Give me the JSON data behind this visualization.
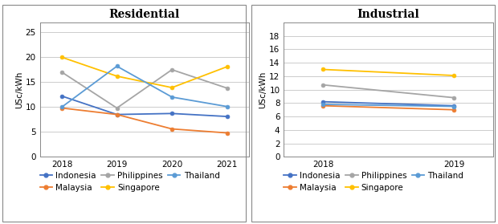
{
  "residential": {
    "title": "Residential",
    "ylabel": "USc/kWh",
    "years": [
      2018,
      2019,
      2020,
      2021
    ],
    "ylim": [
      0,
      27
    ],
    "yticks": [
      0,
      5,
      10,
      15,
      20,
      25
    ],
    "series": {
      "Indonesia": {
        "values": [
          12.2,
          8.5,
          8.7,
          8.1
        ],
        "color": "#4472C4",
        "marker": "o"
      },
      "Malaysia": {
        "values": [
          9.8,
          8.5,
          5.6,
          4.8
        ],
        "color": "#ED7D31",
        "marker": "o"
      },
      "Philippines": {
        "values": [
          17.0,
          9.8,
          17.5,
          13.8
        ],
        "color": "#A5A5A5",
        "marker": "o"
      },
      "Singapore": {
        "values": [
          20.0,
          16.2,
          13.9,
          18.1
        ],
        "color": "#FFC000",
        "marker": "o"
      },
      "Thailand": {
        "values": [
          10.0,
          18.2,
          12.0,
          10.1
        ],
        "color": "#5B9BD5",
        "marker": "o"
      }
    }
  },
  "industrial": {
    "title": "Industrial",
    "ylabel": "USc/kWh",
    "years": [
      2018,
      2019
    ],
    "ylim": [
      0,
      20
    ],
    "yticks": [
      0,
      2,
      4,
      6,
      8,
      10,
      12,
      14,
      16,
      18
    ],
    "series": {
      "Indonesia": {
        "values": [
          8.2,
          7.6
        ],
        "color": "#4472C4",
        "marker": "o"
      },
      "Malaysia": {
        "values": [
          7.6,
          7.0
        ],
        "color": "#ED7D31",
        "marker": "o"
      },
      "Philippines": {
        "values": [
          10.7,
          8.8
        ],
        "color": "#A5A5A5",
        "marker": "o"
      },
      "Singapore": {
        "values": [
          13.0,
          12.1
        ],
        "color": "#FFC000",
        "marker": "o"
      },
      "Thailand": {
        "values": [
          7.8,
          7.5
        ],
        "color": "#5B9BD5",
        "marker": "o"
      }
    }
  },
  "legend_order": [
    "Indonesia",
    "Malaysia",
    "Philippines",
    "Singapore",
    "Thailand"
  ],
  "background_color": "#FFFFFF",
  "grid_color": "#CCCCCC",
  "border_color": "#888888",
  "title_fontsize": 10,
  "axis_fontsize": 7.5,
  "legend_fontsize": 7.5
}
